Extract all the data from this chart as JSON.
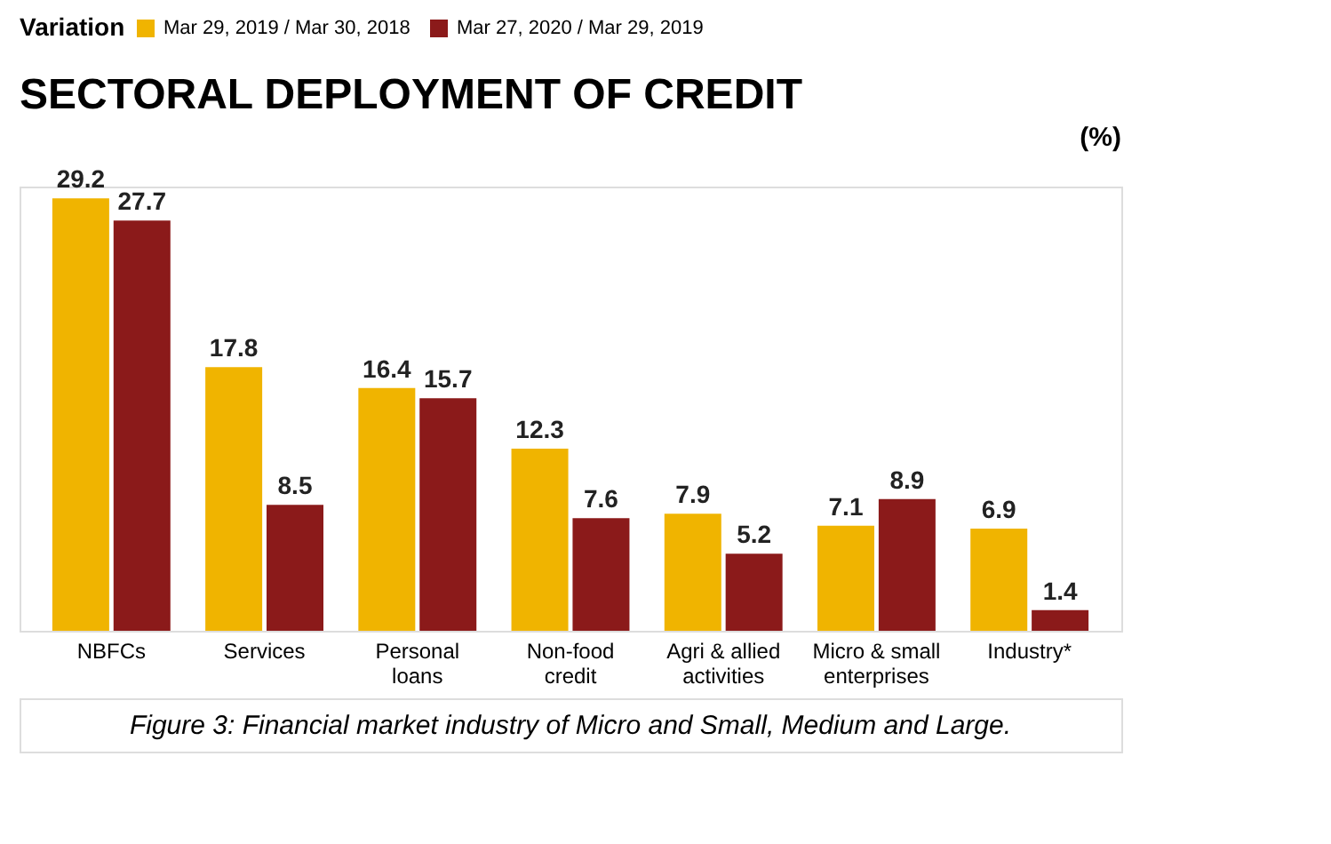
{
  "chart_data": {
    "type": "bar",
    "title": "SECTORAL DEPLOYMENT OF CREDIT",
    "legend_title": "Variation",
    "categories": [
      "NBFCs",
      "Services",
      "Personal\nloans",
      "Non-food\ncredit",
      "Agri & allied\nactivities",
      "Micro & small\nenterprises",
      "Industry*"
    ],
    "series": [
      {
        "name": "Mar 29, 2019 / Mar 30, 2018",
        "color": "#f0b400",
        "values": [
          29.2,
          17.8,
          16.4,
          12.3,
          7.9,
          7.1,
          6.9
        ]
      },
      {
        "name": "Mar 27, 2020 / Mar 29, 2019",
        "color": "#8b1a1a",
        "values": [
          27.7,
          8.5,
          15.7,
          7.6,
          5.2,
          8.9,
          1.4
        ]
      }
    ],
    "data_labels": true,
    "legend": "top",
    "grid": false,
    "tick_labels": "x",
    "annotations": [
      "(%)",
      "Figure 3: Financial market industry of Micro and Small, Medium and Large."
    ]
  }
}
